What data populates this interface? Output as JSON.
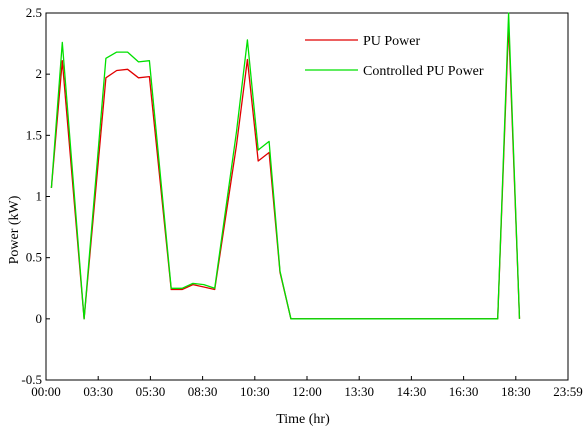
{
  "chart_data": {
    "type": "line",
    "title": "",
    "xlabel": "Time (hr)",
    "ylabel": "Power (kW)",
    "ylim": [
      -0.5,
      2.5
    ],
    "xlim_hours": [
      0,
      23.98
    ],
    "x_ticks": [
      "00:00",
      "03:30",
      "05:30",
      "08:30",
      "10:30",
      "12:00",
      "13:30",
      "14:30",
      "16:30",
      "18:30",
      "23:59"
    ],
    "y_ticks": [
      "-0.5",
      "0",
      "0.5",
      "1",
      "1.5",
      "2",
      "2.5"
    ],
    "grid": false,
    "legend_position": "top-right",
    "series": [
      {
        "name": "PU Power",
        "color": "#e00000",
        "x": [
          "00:15",
          "00:45",
          "01:45",
          "02:45",
          "03:15",
          "03:45",
          "04:15",
          "04:45",
          "05:45",
          "06:15",
          "06:45",
          "07:15",
          "07:45",
          "08:45",
          "09:15",
          "09:45",
          "10:15",
          "10:45",
          "11:15",
          "20:45",
          "21:15",
          "21:45"
        ],
        "y": [
          1.07,
          2.11,
          0.0,
          1.97,
          2.03,
          2.04,
          1.97,
          1.98,
          0.24,
          0.24,
          0.28,
          0.26,
          0.24,
          1.42,
          2.12,
          1.29,
          1.36,
          0.38,
          0.0,
          0.0,
          2.41,
          0.0
        ]
      },
      {
        "name": "Controlled PU Power",
        "color": "#00e000",
        "x": [
          "00:15",
          "00:45",
          "01:45",
          "02:45",
          "03:15",
          "03:45",
          "04:15",
          "04:45",
          "05:45",
          "06:15",
          "06:45",
          "07:15",
          "07:45",
          "08:45",
          "09:15",
          "09:45",
          "10:15",
          "10:45",
          "11:15",
          "20:45",
          "21:15",
          "21:45"
        ],
        "y": [
          1.07,
          2.26,
          0.0,
          2.13,
          2.18,
          2.18,
          2.1,
          2.11,
          0.25,
          0.25,
          0.29,
          0.28,
          0.25,
          1.53,
          2.28,
          1.38,
          1.45,
          0.39,
          0.0,
          0.0,
          2.5,
          0.0
        ]
      }
    ]
  },
  "y_top_label": "2.5"
}
